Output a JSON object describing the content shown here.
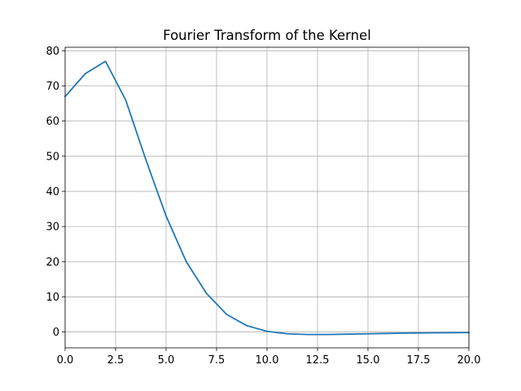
{
  "chart_data": {
    "type": "line",
    "title": "Fourier Transform of the Kernel",
    "xlabel": "",
    "ylabel": "",
    "xlim": [
      0,
      20
    ],
    "ylim": [
      -4.5,
      81
    ],
    "x_ticks": [
      0,
      2.5,
      5,
      7.5,
      10,
      12.5,
      15,
      17.5,
      20
    ],
    "x_tick_labels": [
      "0.0",
      "2.5",
      "5.0",
      "7.5",
      "10.0",
      "12.5",
      "15.0",
      "17.5",
      "20.0"
    ],
    "y_ticks": [
      0,
      10,
      20,
      30,
      40,
      50,
      60,
      70,
      80
    ],
    "y_tick_labels": [
      "0",
      "10",
      "20",
      "30",
      "40",
      "50",
      "60",
      "70",
      "80"
    ],
    "grid": true,
    "series": [
      {
        "color": "#1f77b4",
        "x": [
          0,
          1,
          2,
          3,
          4,
          5,
          6,
          7,
          8,
          9,
          10,
          11,
          12,
          13,
          14,
          15,
          16,
          17,
          18,
          19,
          20
        ],
        "y": [
          67.0,
          73.5,
          77.0,
          66.0,
          49.0,
          33.0,
          20.0,
          11.0,
          5.0,
          1.8,
          0.2,
          -0.5,
          -0.7,
          -0.7,
          -0.6,
          -0.5,
          -0.4,
          -0.3,
          -0.25,
          -0.2,
          -0.15
        ]
      }
    ]
  }
}
